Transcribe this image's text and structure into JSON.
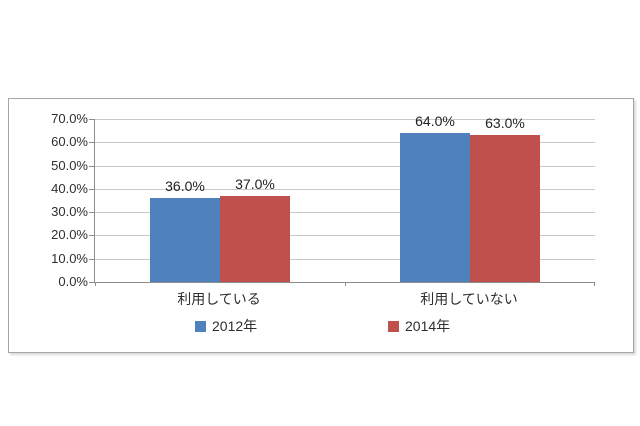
{
  "chart_data": {
    "type": "bar",
    "categories": [
      "利用している",
      "利用していない"
    ],
    "series": [
      {
        "name": "2012年",
        "color": "#4F81BD",
        "values": [
          36.0,
          64.0
        ]
      },
      {
        "name": "2014年",
        "color": "#C0504D",
        "values": [
          37.0,
          63.0
        ]
      }
    ],
    "data_labels": {
      "2012年": [
        "36.0%",
        "64.0%"
      ],
      "2014年": [
        "37.0%",
        "63.0%"
      ]
    },
    "title": "",
    "xlabel": "",
    "ylabel": "",
    "y_axis": {
      "min": 0,
      "max": 70,
      "step": 10,
      "tick_labels": [
        "0.0%",
        "10.0%",
        "20.0%",
        "30.0%",
        "40.0%",
        "50.0%",
        "60.0%",
        "70.0%"
      ]
    },
    "grid": true,
    "legend_position": "bottom",
    "colors": {
      "frame_border": "#a6a6a6",
      "axis_line": "#8c8c8c",
      "gridline": "#c9c9c9",
      "text": "#2e2e2e",
      "background": "#ffffff"
    }
  }
}
